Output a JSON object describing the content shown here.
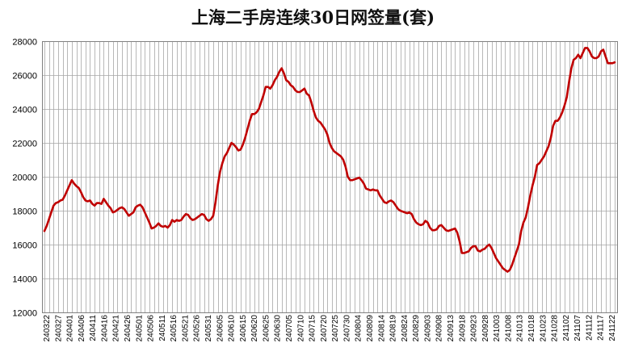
{
  "chart_data": {
    "type": "line",
    "title": "上海二手房连续30日网签量(套)",
    "xlabel": "",
    "ylabel": "",
    "ylim": [
      12000,
      28000
    ],
    "yticks": [
      12000,
      14000,
      16000,
      18000,
      20000,
      22000,
      24000,
      26000,
      28000
    ],
    "grid": true,
    "legend": "none",
    "colors": {
      "line": "#c00000",
      "grid": "#a6a6a6",
      "axis": "#808080"
    },
    "xticks": [
      "240322",
      "240327",
      "240401",
      "240406",
      "240411",
      "240416",
      "240421",
      "240426",
      "240501",
      "240506",
      "240511",
      "240516",
      "240521",
      "240526",
      "240531",
      "240605",
      "240610",
      "240615",
      "240620",
      "240625",
      "240630",
      "240705",
      "240710",
      "240715",
      "240720",
      "240725",
      "240730",
      "240804",
      "240809",
      "240814",
      "240819",
      "240824",
      "240829",
      "240903",
      "240908",
      "240913",
      "240918",
      "240923",
      "240928",
      "241003",
      "241008",
      "241013",
      "241018",
      "241023",
      "241028",
      "241102",
      "241107",
      "241112",
      "241117",
      "241122"
    ],
    "series": [
      {
        "name": "",
        "x_start": "240322",
        "x_end": "241126",
        "values": [
          16800,
          17100,
          17500,
          17900,
          18300,
          18450,
          18500,
          18600,
          18650,
          18900,
          19200,
          19500,
          19800,
          19600,
          19450,
          19350,
          19100,
          18800,
          18600,
          18550,
          18600,
          18400,
          18300,
          18450,
          18450,
          18400,
          18700,
          18500,
          18300,
          18150,
          17900,
          17950,
          18050,
          18150,
          18200,
          18100,
          17900,
          17700,
          17800,
          17900,
          18200,
          18300,
          18350,
          18200,
          17900,
          17600,
          17300,
          16950,
          17000,
          17100,
          17250,
          17100,
          17050,
          17100,
          17000,
          17150,
          17450,
          17350,
          17450,
          17400,
          17450,
          17650,
          17800,
          17750,
          17550,
          17450,
          17500,
          17600,
          17700,
          17800,
          17750,
          17500,
          17400,
          17500,
          17700,
          18500,
          19500,
          20300,
          20800,
          21200,
          21400,
          21700,
          22000,
          21900,
          21750,
          21550,
          21600,
          21900,
          22300,
          22800,
          23300,
          23700,
          23700,
          23800,
          24000,
          24400,
          24800,
          25300,
          25300,
          25200,
          25400,
          25700,
          25900,
          26200,
          26400,
          26100,
          25700,
          25600,
          25400,
          25300,
          25100,
          25000,
          25000,
          25100,
          25200,
          24900,
          24800,
          24400,
          23900,
          23500,
          23300,
          23200,
          23000,
          22800,
          22500,
          22000,
          21700,
          21500,
          21400,
          21300,
          21200,
          21000,
          20600,
          20000,
          19800,
          19800,
          19850,
          19900,
          19950,
          19800,
          19600,
          19300,
          19250,
          19200,
          19250,
          19200,
          19200,
          18900,
          18700,
          18500,
          18450,
          18550,
          18600,
          18500,
          18300,
          18100,
          18000,
          17950,
          17900,
          17850,
          17900,
          17800,
          17500,
          17300,
          17200,
          17150,
          17200,
          17400,
          17300,
          17000,
          16850,
          16850,
          16900,
          17100,
          17150,
          17000,
          16850,
          16800,
          16850,
          16900,
          16950,
          16700,
          16200,
          15500,
          15500,
          15550,
          15600,
          15800,
          15900,
          15900,
          15650,
          15600,
          15700,
          15750,
          15900,
          16000,
          15800,
          15500,
          15200,
          15000,
          14800,
          14600,
          14500,
          14400,
          14500,
          14800,
          15200,
          15600,
          16000,
          16800,
          17300,
          17600,
          18200,
          18900,
          19500,
          20000,
          20700,
          20800,
          21000,
          21200,
          21500,
          21800,
          22300,
          23000,
          23300,
          23300,
          23500,
          23800,
          24200,
          24700,
          25600,
          26400,
          26900,
          27000,
          27200,
          27000,
          27300,
          27600,
          27600,
          27400,
          27100,
          27000,
          27000,
          27100,
          27400,
          27500,
          27100,
          26700,
          26700,
          26700,
          26750
        ]
      }
    ]
  }
}
